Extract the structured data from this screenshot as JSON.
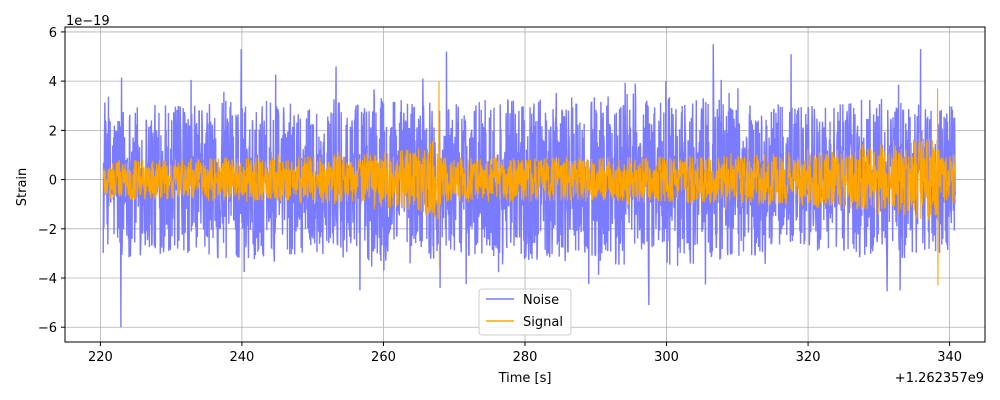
{
  "chart_data": {
    "type": "line",
    "title": "",
    "xlabel": "Time [s]",
    "ylabel": "Strain",
    "x_offset_label": "+1.262357e9",
    "y_scale_label": "1e−19",
    "xlim": [
      215,
      345
    ],
    "ylim": [
      -6.6,
      6.2
    ],
    "x_range": [
      220.4,
      340.8
    ],
    "x_ticks": [
      220,
      240,
      260,
      280,
      300,
      320,
      340
    ],
    "x_tick_labels": [
      "220",
      "240",
      "260",
      "280",
      "300",
      "320",
      "340"
    ],
    "y_ticks": [
      -6,
      -4,
      -2,
      0,
      2,
      4,
      6
    ],
    "y_tick_labels": [
      "−6",
      "−4",
      "−2",
      "0",
      "2",
      "4",
      "6"
    ],
    "grid": true,
    "legend_position": "bottom-center",
    "series": [
      {
        "name": "Noise",
        "color": "#7b7bff",
        "envelope": [
          [
            220.4,
            2.5
          ],
          [
            223,
            3.2
          ],
          [
            230,
            3.0
          ],
          [
            240,
            3.3
          ],
          [
            250,
            3.0
          ],
          [
            260,
            3.4
          ],
          [
            270,
            3.2
          ],
          [
            280,
            3.3
          ],
          [
            290,
            3.4
          ],
          [
            300,
            3.6
          ],
          [
            310,
            3.2
          ],
          [
            320,
            3.0
          ],
          [
            330,
            3.3
          ],
          [
            340.8,
            3.0
          ]
        ],
        "peaks": [
          {
            "x": 222.9,
            "y": -6.0
          },
          {
            "x": 239.9,
            "y": 5.3
          },
          {
            "x": 253.3,
            "y": 4.6
          },
          {
            "x": 268.0,
            "y": -4.4
          },
          {
            "x": 268.9,
            "y": 5.2
          },
          {
            "x": 297.5,
            "y": -5.1
          },
          {
            "x": 306.6,
            "y": 5.5
          },
          {
            "x": 317.6,
            "y": 5.1
          },
          {
            "x": 333.0,
            "y": -4.5
          },
          {
            "x": 335.9,
            "y": 5.3
          }
        ]
      },
      {
        "name": "Signal",
        "color": "#ffa500",
        "envelope": [
          [
            220.4,
            0.8
          ],
          [
            240,
            0.9
          ],
          [
            255,
            1.0
          ],
          [
            265,
            1.3
          ],
          [
            267.8,
            1.8
          ],
          [
            268.2,
            0.9
          ],
          [
            290,
            0.9
          ],
          [
            310,
            1.0
          ],
          [
            330,
            1.3
          ],
          [
            338.3,
            1.8
          ],
          [
            338.8,
            0.9
          ],
          [
            340.8,
            1.0
          ]
        ],
        "peaks": [
          {
            "x": 267.85,
            "y": 4.0
          },
          {
            "x": 267.9,
            "y": -3.6
          },
          {
            "x": 338.3,
            "y": 3.7
          },
          {
            "x": 338.35,
            "y": -4.3
          }
        ]
      }
    ]
  }
}
